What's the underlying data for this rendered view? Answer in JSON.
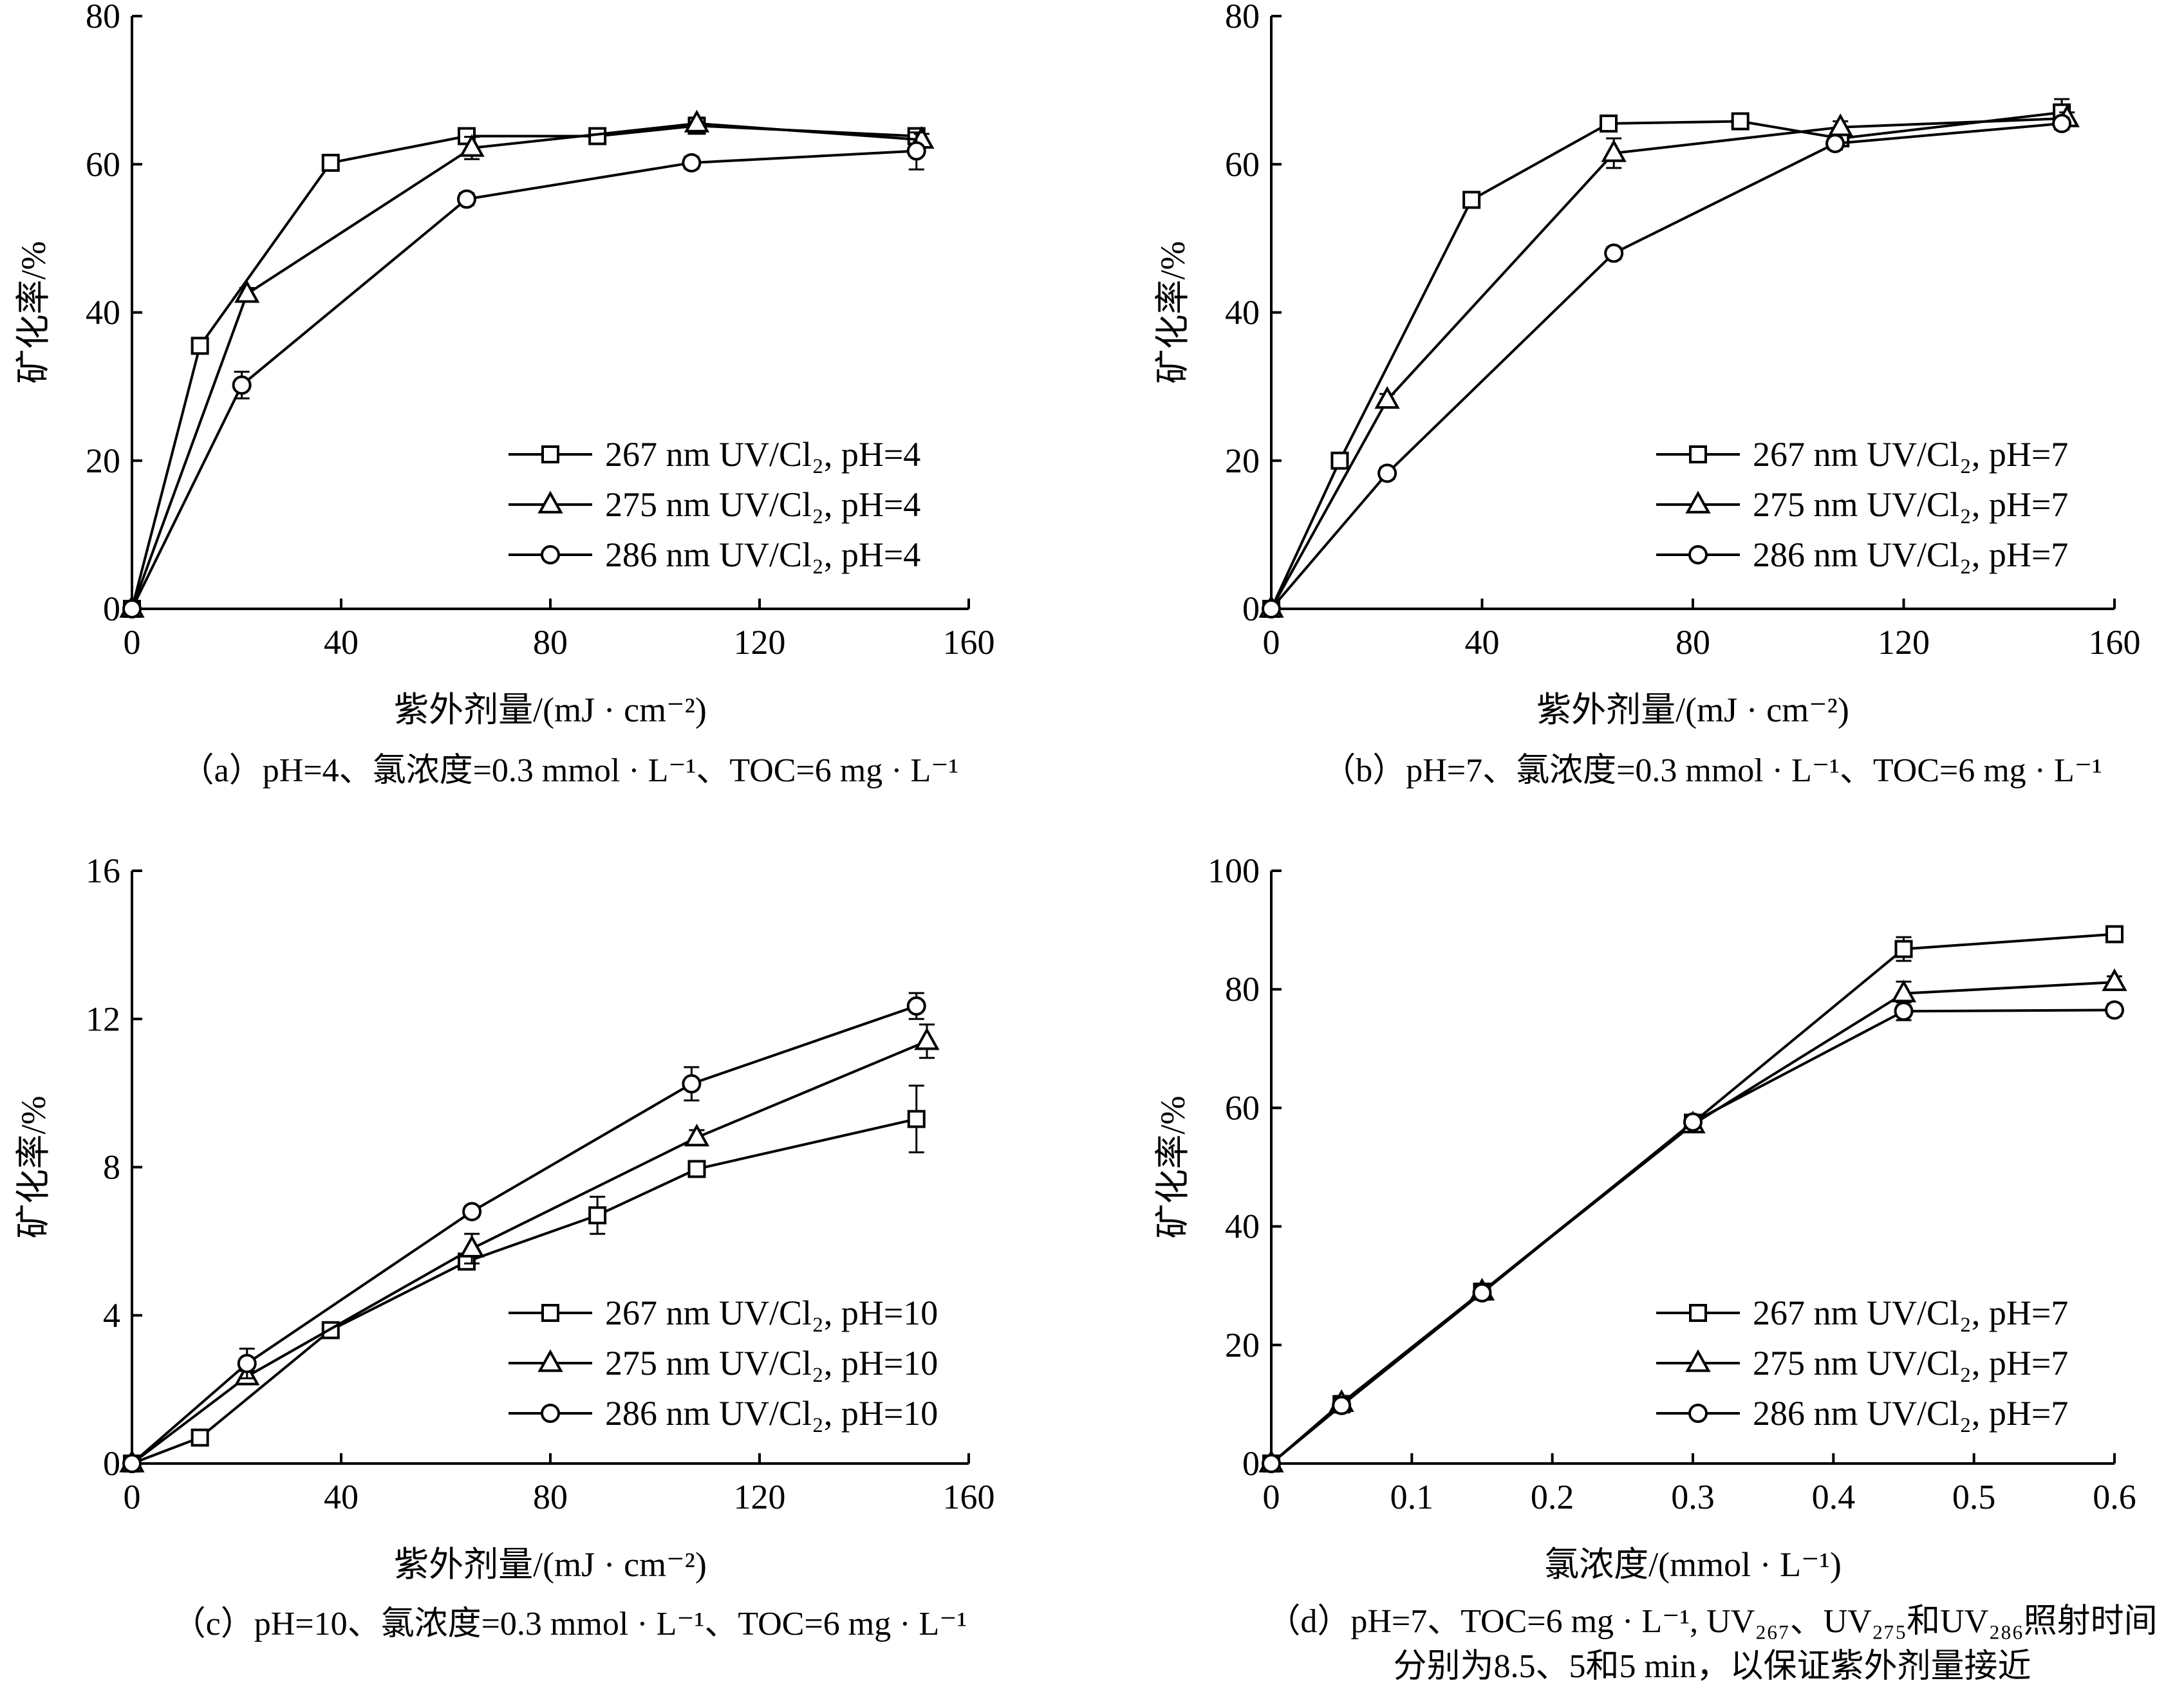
{
  "chart_data": [
    {
      "id": "a",
      "type": "line",
      "ylabel": "矿化率/%",
      "xlabel": "紫外剂量/(mJ · cm⁻²)",
      "caption": "（a）pH=4、氯浓度=0.3 mmol · L⁻¹、TOC=6 mg · L⁻¹",
      "xlim": [
        0,
        160
      ],
      "ylim": [
        0,
        80
      ],
      "xticks": [
        "0",
        "40",
        "80",
        "120",
        "160"
      ],
      "yticks": [
        "0",
        "20",
        "40",
        "60",
        "80"
      ],
      "xtick_values": [
        0,
        40,
        80,
        120,
        160
      ],
      "ytick_values": [
        0,
        20,
        40,
        60,
        80
      ],
      "legend_position": "bottom-right",
      "grid": false,
      "series": [
        {
          "name": "267 nm UV/Cl₂, pH=4",
          "marker": "square",
          "x": [
            0,
            13,
            38,
            64,
            89,
            108,
            150
          ],
          "y": [
            0,
            35.5,
            60.2,
            63.8,
            63.8,
            65.2,
            63.8
          ],
          "err": [
            0,
            0.8,
            0.6,
            0.7,
            0.6,
            0.7,
            0.8
          ]
        },
        {
          "name": "275 nm UV/Cl₂, pH=4",
          "marker": "triangle",
          "x": [
            0,
            22,
            65,
            108,
            151
          ],
          "y": [
            0,
            42.5,
            62.2,
            65.5,
            63.3
          ],
          "err": [
            0,
            0.8,
            1.5,
            0.8,
            0.8
          ]
        },
        {
          "name": "286 nm UV/Cl₂, pH=4",
          "marker": "circle",
          "x": [
            0,
            21,
            64,
            107,
            150
          ],
          "y": [
            0,
            30.2,
            55.3,
            60.2,
            61.8
          ],
          "err": [
            0,
            1.8,
            0.8,
            0.8,
            2.5
          ]
        }
      ]
    },
    {
      "id": "b",
      "type": "line",
      "ylabel": "矿化率/%",
      "xlabel": "紫外剂量/(mJ · cm⁻²)",
      "caption": "（b）pH=7、氯浓度=0.3 mmol · L⁻¹、TOC=6 mg · L⁻¹",
      "xlim": [
        0,
        160
      ],
      "ylim": [
        0,
        80
      ],
      "xticks": [
        "0",
        "40",
        "80",
        "120",
        "160"
      ],
      "yticks": [
        "0",
        "20",
        "40",
        "60",
        "80"
      ],
      "xtick_values": [
        0,
        40,
        80,
        120,
        160
      ],
      "ytick_values": [
        0,
        20,
        40,
        60,
        80
      ],
      "legend_position": "bottom-right",
      "grid": false,
      "series": [
        {
          "name": "267 nm UV/Cl₂, pH=7",
          "marker": "square",
          "x": [
            0,
            13,
            38,
            64,
            89,
            108,
            150
          ],
          "y": [
            0,
            20.0,
            55.2,
            65.5,
            65.8,
            63.5,
            67.0
          ],
          "err": [
            0,
            0.8,
            0.8,
            0.7,
            0.6,
            0.7,
            1.8
          ]
        },
        {
          "name": "275 nm UV/Cl₂, pH=7",
          "marker": "triangle",
          "x": [
            0,
            22,
            65,
            108,
            151
          ],
          "y": [
            0,
            28.2,
            61.5,
            65.0,
            66.2
          ],
          "err": [
            0,
            0.8,
            2.0,
            0.8,
            0.8
          ]
        },
        {
          "name": "286 nm UV/Cl₂, pH=7",
          "marker": "circle",
          "x": [
            0,
            22,
            65,
            107,
            150
          ],
          "y": [
            0,
            18.3,
            48.0,
            62.8,
            65.5
          ],
          "err": [
            0,
            0.8,
            0.8,
            0.8,
            0.8
          ]
        }
      ]
    },
    {
      "id": "c",
      "type": "line",
      "ylabel": "矿化率/%",
      "xlabel": "紫外剂量/(mJ · cm⁻²)",
      "caption": "（c）pH=10、氯浓度=0.3 mmol · L⁻¹、TOC=6 mg · L⁻¹",
      "xlim": [
        0,
        160
      ],
      "ylim": [
        0,
        16
      ],
      "xticks": [
        "0",
        "40",
        "80",
        "120",
        "160"
      ],
      "yticks": [
        "0",
        "4",
        "8",
        "12",
        "16"
      ],
      "xtick_values": [
        0,
        40,
        80,
        120,
        160
      ],
      "ytick_values": [
        0,
        4,
        8,
        12,
        16
      ],
      "legend_position": "bottom-right",
      "grid": false,
      "series": [
        {
          "name": "267 nm UV/Cl₂, pH=10",
          "marker": "square",
          "x": [
            0,
            13,
            38,
            64,
            89,
            108,
            150
          ],
          "y": [
            0,
            0.7,
            3.6,
            5.45,
            6.7,
            7.95,
            9.3
          ],
          "err": [
            0,
            0.12,
            0.12,
            0.15,
            0.5,
            0.15,
            0.9
          ]
        },
        {
          "name": "275 nm UV/Cl₂, pH=10",
          "marker": "triangle",
          "x": [
            0,
            22,
            65,
            108,
            152
          ],
          "y": [
            0,
            2.35,
            5.8,
            8.8,
            11.4
          ],
          "err": [
            0,
            0.15,
            0.4,
            0.2,
            0.45
          ]
        },
        {
          "name": "286 nm UV/Cl₂, pH=10",
          "marker": "circle",
          "x": [
            0,
            22,
            65,
            107,
            150
          ],
          "y": [
            0,
            2.7,
            6.8,
            10.25,
            12.35
          ],
          "err": [
            0,
            0.4,
            0.15,
            0.45,
            0.35
          ]
        }
      ]
    },
    {
      "id": "d",
      "type": "line",
      "ylabel": "矿化率/%",
      "xlabel": "氯浓度/(mmol · L⁻¹)",
      "caption": "（d）pH=7、TOC=6 mg · L⁻¹, UV₂₆₇、UV₂₇₅和UV₂₈₆照射时间",
      "caption2": "分别为8.5、5和5 min，以保证紫外剂量接近",
      "xlim": [
        0,
        0.6
      ],
      "ylim": [
        0,
        100
      ],
      "xticks": [
        "0",
        "0.1",
        "0.2",
        "0.3",
        "0.4",
        "0.5",
        "0.6"
      ],
      "yticks": [
        "0",
        "20",
        "40",
        "60",
        "80",
        "100"
      ],
      "xtick_values": [
        0,
        0.1,
        0.2,
        0.3,
        0.4,
        0.5,
        0.6
      ],
      "ytick_values": [
        0,
        20,
        40,
        60,
        80,
        100
      ],
      "legend_position": "bottom-right",
      "grid": false,
      "series": [
        {
          "name": "267 nm UV/Cl₂, pH=7",
          "marker": "square",
          "x": [
            0,
            0.05,
            0.15,
            0.3,
            0.45,
            0.6
          ],
          "y": [
            0,
            10.0,
            29.0,
            57.5,
            86.8,
            89.3
          ],
          "err": [
            0,
            1.2,
            1.0,
            1.0,
            2.0,
            1.0
          ]
        },
        {
          "name": "275 nm UV/Cl₂, pH=7",
          "marker": "triangle",
          "x": [
            0,
            0.05,
            0.15,
            0.3,
            0.45,
            0.6
          ],
          "y": [
            0,
            10.2,
            29.0,
            57.2,
            79.3,
            81.2
          ],
          "err": [
            0,
            1.2,
            1.0,
            1.0,
            2.0,
            1.0
          ]
        },
        {
          "name": "286 nm UV/Cl₂, pH=7",
          "marker": "circle",
          "x": [
            0,
            0.05,
            0.15,
            0.3,
            0.45,
            0.6
          ],
          "y": [
            0,
            9.8,
            28.8,
            57.6,
            76.3,
            76.5
          ],
          "err": [
            0,
            1.2,
            1.0,
            1.0,
            1.5,
            1.0
          ]
        }
      ]
    }
  ]
}
